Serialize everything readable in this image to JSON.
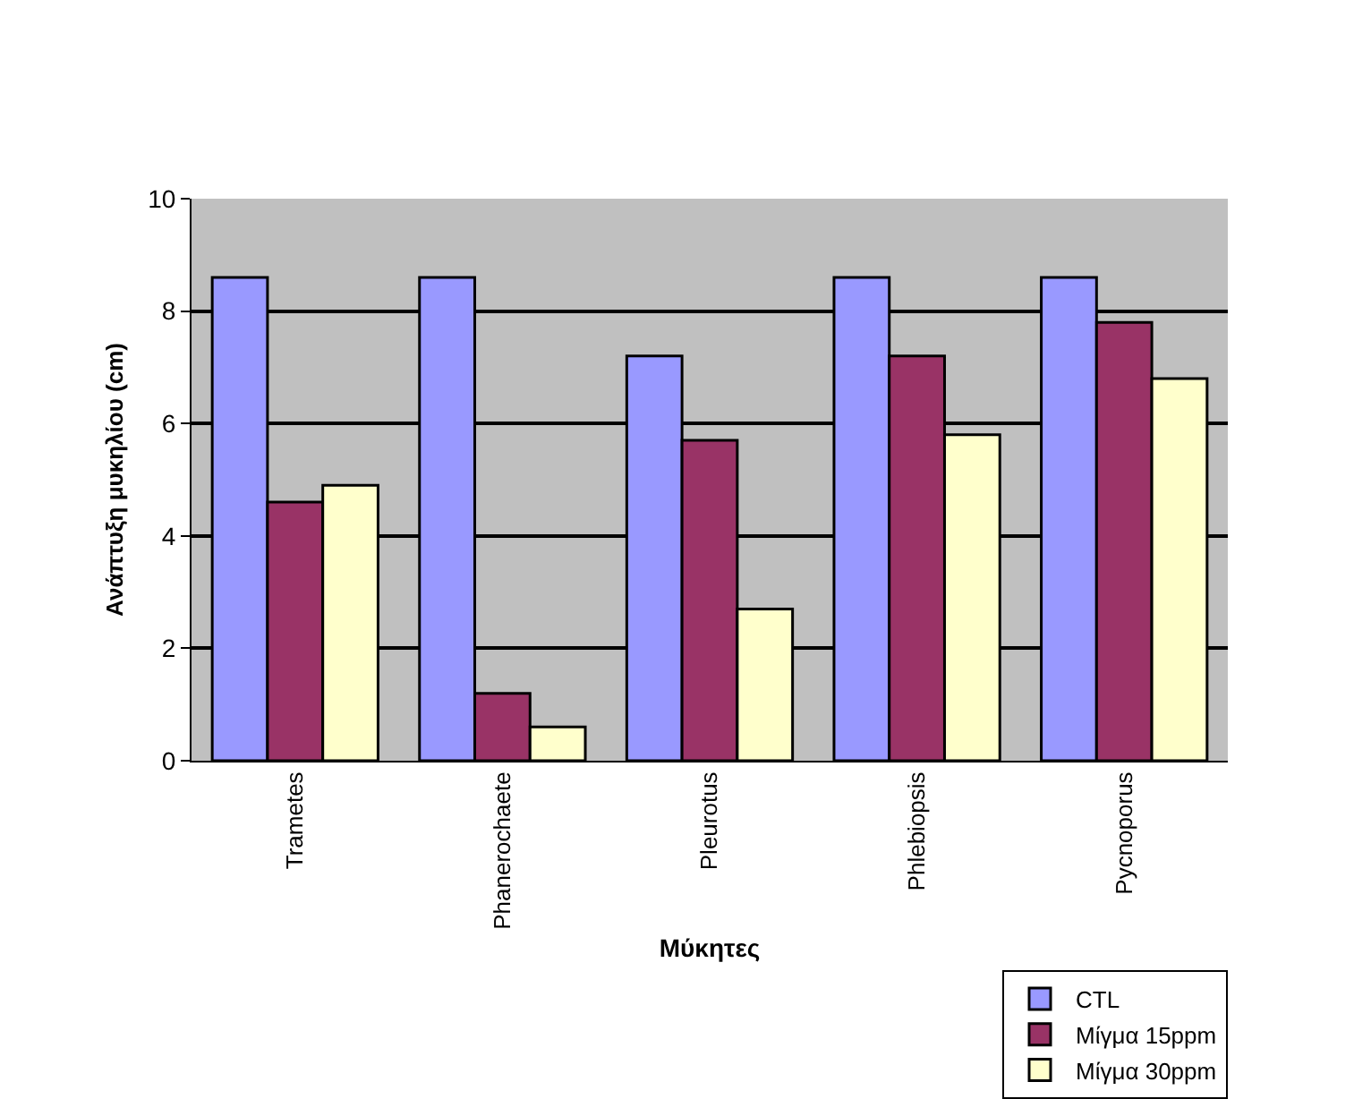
{
  "chart_data": {
    "type": "bar",
    "xlabel": "Μύκητες",
    "ylabel": "Ανάπτυξη μυκηλίου (cm)",
    "categories": [
      "Trametes",
      "Phanerochaete",
      "Pleurotus",
      "Phlebiopsis",
      "Pycnoporus"
    ],
    "series": [
      {
        "name": "CTL",
        "color": "#9999ff",
        "values": [
          8.6,
          8.6,
          7.2,
          8.6,
          8.6
        ]
      },
      {
        "name": "Μίγμα 15ppm",
        "color": "#993366",
        "values": [
          4.6,
          1.2,
          5.7,
          7.2,
          7.8
        ]
      },
      {
        "name": "Μίγμα 30ppm",
        "color": "#ffffcc",
        "values": [
          4.9,
          0.6,
          2.7,
          5.8,
          6.8
        ]
      }
    ],
    "ylim": [
      0,
      10
    ],
    "yticks": [
      0,
      2,
      4,
      6,
      8,
      10
    ],
    "grid": "y",
    "legend": "bottom right"
  }
}
